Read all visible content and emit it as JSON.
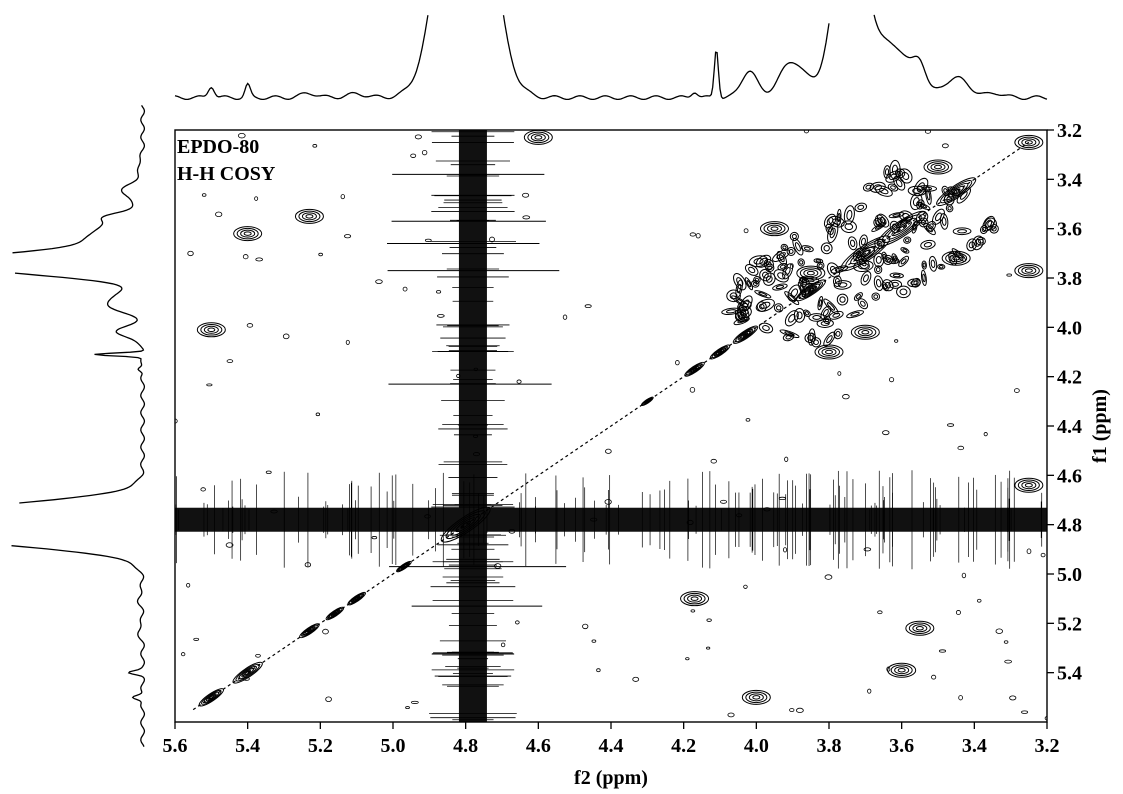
{
  "chart_data": {
    "type": "contour",
    "annotation_lines": [
      "EPDO-80",
      "H-H COSY"
    ],
    "xlabel": "f2 (ppm)",
    "ylabel": "f1 (ppm)",
    "xlim": [
      5.6,
      3.2
    ],
    "ylim": [
      3.2,
      5.6
    ],
    "x_ticks": [
      "5.6",
      "5.4",
      "5.2",
      "5.0",
      "4.8",
      "4.6",
      "4.4",
      "4.2",
      "4.0",
      "3.8",
      "3.6",
      "3.4",
      "3.2"
    ],
    "y_ticks": [
      "3.2",
      "3.4",
      "3.6",
      "3.8",
      "4.0",
      "4.2",
      "4.4",
      "4.6",
      "4.8",
      "5.0",
      "5.2",
      "5.4"
    ],
    "solvent_line_ppm": 4.78,
    "diagonal_peaks": [
      {
        "ppm": 5.5,
        "size": 0.025
      },
      {
        "ppm": 5.4,
        "size": 0.03
      },
      {
        "ppm": 5.23,
        "size": 0.02
      },
      {
        "ppm": 5.16,
        "size": 0.018
      },
      {
        "ppm": 5.1,
        "size": 0.018
      },
      {
        "ppm": 4.97,
        "size": 0.015
      },
      {
        "ppm": 4.8,
        "size": 0.05
      },
      {
        "ppm": 4.3,
        "size": 0.012
      },
      {
        "ppm": 4.17,
        "size": 0.02
      },
      {
        "ppm": 4.1,
        "size": 0.02
      },
      {
        "ppm": 4.03,
        "size": 0.025
      },
      {
        "ppm": 3.85,
        "size": 0.03
      },
      {
        "ppm": 3.7,
        "size": 0.05
      },
      {
        "ppm": 3.6,
        "size": 0.05
      },
      {
        "ppm": 3.45,
        "size": 0.04
      }
    ],
    "cross_peaks": [
      {
        "f2": 5.4,
        "f1": 3.62
      },
      {
        "f2": 5.23,
        "f1": 3.55
      },
      {
        "f2": 5.5,
        "f1": 4.01
      },
      {
        "f2": 4.6,
        "f1": 3.23
      },
      {
        "f2": 4.0,
        "f1": 5.5
      },
      {
        "f2": 3.6,
        "f1": 5.39
      },
      {
        "f2": 3.55,
        "f1": 5.22
      },
      {
        "f2": 3.8,
        "f1": 4.1
      },
      {
        "f2": 3.95,
        "f1": 3.6
      },
      {
        "f2": 3.85,
        "f1": 3.78
      },
      {
        "f2": 3.5,
        "f1": 3.35
      },
      {
        "f2": 3.25,
        "f1": 3.25
      },
      {
        "f2": 3.25,
        "f1": 4.64
      },
      {
        "f2": 3.25,
        "f1": 3.77
      },
      {
        "f2": 3.45,
        "f1": 3.72
      },
      {
        "f2": 4.17,
        "f1": 5.1
      },
      {
        "f2": 3.7,
        "f1": 4.02
      }
    ]
  }
}
